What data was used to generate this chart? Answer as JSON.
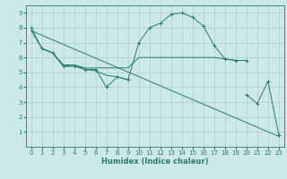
{
  "xlabel": "Humidex (Indice chaleur)",
  "xlim": [
    -0.5,
    23.5
  ],
  "ylim": [
    0,
    9.5
  ],
  "xticks": [
    0,
    1,
    2,
    3,
    4,
    5,
    6,
    7,
    8,
    9,
    10,
    11,
    12,
    13,
    14,
    15,
    16,
    17,
    18,
    19,
    20,
    21,
    22,
    23
  ],
  "yticks": [
    1,
    2,
    3,
    4,
    5,
    6,
    7,
    8,
    9
  ],
  "background_color": "#cde8e8",
  "grid_color": "#aacfcf",
  "line_color": "#2a7a6f",
  "lines": [
    {
      "x": [
        0,
        1,
        2,
        3,
        4,
        5,
        6,
        7,
        8,
        9,
        10,
        11,
        12,
        13,
        14,
        15,
        16,
        17,
        18,
        19,
        20
      ],
      "y": [
        8.0,
        6.6,
        6.3,
        5.4,
        5.4,
        5.2,
        5.2,
        4.0,
        4.7,
        4.5,
        7.0,
        8.0,
        8.3,
        8.9,
        9.0,
        8.7,
        8.1,
        6.8,
        5.9,
        5.8,
        5.8
      ],
      "marker": true
    },
    {
      "x": [
        0,
        1,
        2,
        3,
        4,
        5,
        6,
        7,
        8,
        9,
        10,
        11,
        12,
        13,
        14,
        15,
        16,
        17,
        18,
        19,
        20
      ],
      "y": [
        7.8,
        6.6,
        6.3,
        5.5,
        5.5,
        5.3,
        5.3,
        5.3,
        5.3,
        5.3,
        6.0,
        6.0,
        6.0,
        6.0,
        6.0,
        6.0,
        6.0,
        6.0,
        5.9,
        5.8,
        5.8
      ],
      "marker": false
    },
    {
      "x": [
        0,
        23
      ],
      "y": [
        7.8,
        0.7
      ],
      "marker": false
    },
    {
      "x": [
        1,
        2,
        3,
        4,
        5,
        6,
        7,
        8,
        9
      ],
      "y": [
        6.6,
        6.3,
        5.4,
        5.5,
        5.2,
        5.1,
        4.8,
        4.7,
        4.5
      ],
      "marker": false
    },
    {
      "x": [
        20,
        21,
        22,
        23
      ],
      "y": [
        3.5,
        2.9,
        4.4,
        0.8
      ],
      "marker": true
    }
  ]
}
